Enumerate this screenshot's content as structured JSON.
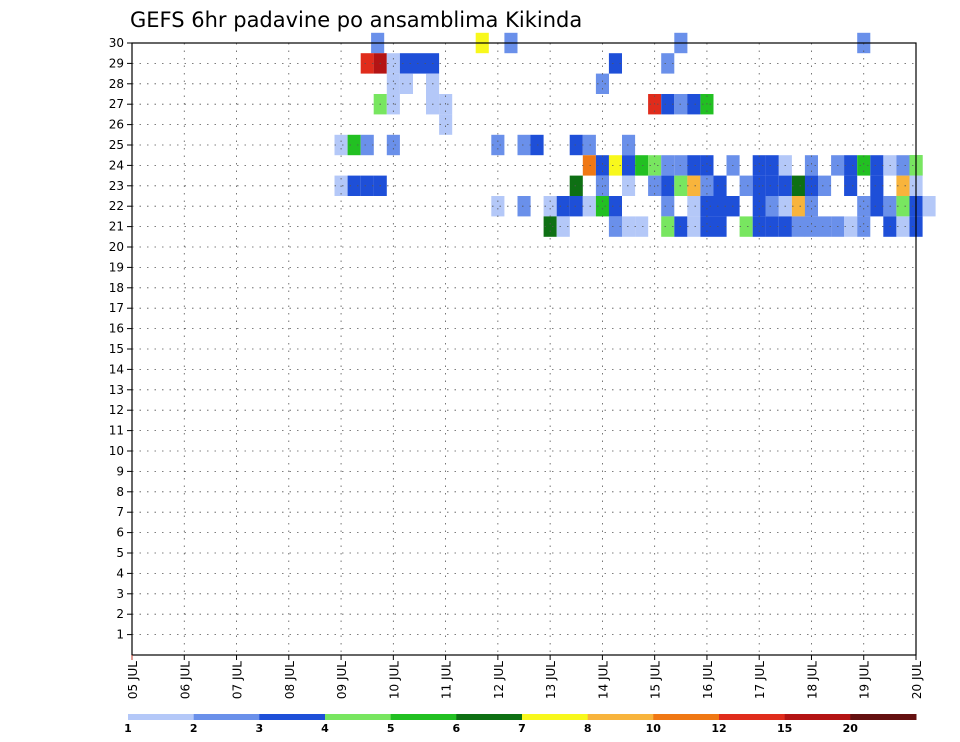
{
  "chart_data": {
    "type": "heatmap",
    "title": "GEFS 6hr padavine po ansamblima Kikinda",
    "x_tick_labels": [
      "05 JUL",
      "06 JUL",
      "07 JUL",
      "08 JUL",
      "09 JUL",
      "10 JUL",
      "11 JUL",
      "12 JUL",
      "13 JUL",
      "14 JUL",
      "15 JUL",
      "16 JUL",
      "17 JUL",
      "18 JUL",
      "19 JUL",
      "20 JUL"
    ],
    "x_range_days": [
      0,
      15
    ],
    "y_tick_labels": [
      "1",
      "2",
      "3",
      "4",
      "5",
      "6",
      "7",
      "8",
      "9",
      "10",
      "11",
      "12",
      "13",
      "14",
      "15",
      "16",
      "17",
      "18",
      "19",
      "20",
      "21",
      "22",
      "23",
      "24",
      "25",
      "26",
      "27",
      "28",
      "29",
      "30"
    ],
    "y_range": [
      0,
      30
    ],
    "grid": true,
    "colorbar": {
      "labels": [
        "1",
        "2",
        "3",
        "4",
        "5",
        "6",
        "7",
        "8",
        "10",
        "12",
        "15",
        "20"
      ],
      "colors": [
        "#b4c8f8",
        "#6a90ea",
        "#1e4fd8",
        "#78e660",
        "#22c022",
        "#0e7014",
        "#f8f81c",
        "#f8b43c",
        "#f07814",
        "#e02c1c",
        "#b41414",
        "#641010"
      ]
    },
    "cells": [
      [
        9.7,
        30,
        1
      ],
      [
        11.7,
        30,
        6
      ],
      [
        12.25,
        30,
        1
      ],
      [
        15.5,
        30,
        1
      ],
      [
        19.0,
        30,
        1
      ],
      [
        9.5,
        29,
        9
      ],
      [
        9.75,
        29,
        10
      ],
      [
        10.0,
        29,
        0
      ],
      [
        10.25,
        29,
        2
      ],
      [
        10.5,
        29,
        2
      ],
      [
        10.75,
        29,
        2
      ],
      [
        14.25,
        29,
        2
      ],
      [
        15.25,
        29,
        1
      ],
      [
        10.0,
        28,
        0
      ],
      [
        10.25,
        28,
        0
      ],
      [
        10.75,
        28,
        0
      ],
      [
        14.0,
        28,
        1
      ],
      [
        9.75,
        27,
        3
      ],
      [
        10.0,
        27,
        0
      ],
      [
        10.75,
        27,
        0
      ],
      [
        11.0,
        27,
        0
      ],
      [
        15.0,
        27,
        9
      ],
      [
        15.25,
        27,
        2
      ],
      [
        15.5,
        27,
        1
      ],
      [
        15.75,
        27,
        2
      ],
      [
        16.0,
        27,
        4
      ],
      [
        11.0,
        26,
        0
      ],
      [
        9.0,
        25,
        0
      ],
      [
        9.25,
        25,
        4
      ],
      [
        9.5,
        25,
        1
      ],
      [
        10.0,
        25,
        1
      ],
      [
        12.0,
        25,
        1
      ],
      [
        12.5,
        25,
        1
      ],
      [
        12.75,
        25,
        2
      ],
      [
        13.5,
        25,
        2
      ],
      [
        13.75,
        25,
        1
      ],
      [
        14.5,
        25,
        1
      ],
      [
        13.75,
        24,
        8
      ],
      [
        14.0,
        24,
        2
      ],
      [
        14.25,
        24,
        6
      ],
      [
        14.5,
        24,
        2
      ],
      [
        14.75,
        24,
        4
      ],
      [
        15.0,
        24,
        3
      ],
      [
        15.25,
        24,
        1
      ],
      [
        15.5,
        24,
        1
      ],
      [
        15.75,
        24,
        2
      ],
      [
        16.0,
        24,
        2
      ],
      [
        16.5,
        24,
        1
      ],
      [
        17.0,
        24,
        2
      ],
      [
        17.25,
        24,
        2
      ],
      [
        17.5,
        24,
        0
      ],
      [
        18.0,
        24,
        1
      ],
      [
        18.5,
        24,
        1
      ],
      [
        18.75,
        24,
        2
      ],
      [
        19.0,
        24,
        4
      ],
      [
        19.25,
        24,
        2
      ],
      [
        19.5,
        24,
        0
      ],
      [
        19.75,
        24,
        1
      ],
      [
        20.0,
        24,
        4
      ],
      [
        20.0,
        24,
        3
      ],
      [
        9.0,
        23,
        0
      ],
      [
        9.25,
        23,
        2
      ],
      [
        9.5,
        23,
        2
      ],
      [
        9.75,
        23,
        2
      ],
      [
        13.5,
        23,
        5
      ],
      [
        14.0,
        23,
        1
      ],
      [
        14.5,
        23,
        0
      ],
      [
        15.0,
        23,
        1
      ],
      [
        15.25,
        23,
        2
      ],
      [
        15.5,
        23,
        3
      ],
      [
        15.75,
        23,
        7
      ],
      [
        16.0,
        23,
        1
      ],
      [
        16.25,
        23,
        2
      ],
      [
        16.75,
        23,
        1
      ],
      [
        17.0,
        23,
        2
      ],
      [
        17.25,
        23,
        2
      ],
      [
        17.5,
        23,
        2
      ],
      [
        17.75,
        23,
        5
      ],
      [
        18.0,
        23,
        2
      ],
      [
        18.25,
        23,
        1
      ],
      [
        18.75,
        23,
        2
      ],
      [
        19.25,
        23,
        2
      ],
      [
        19.75,
        23,
        7
      ],
      [
        20.0,
        23,
        0
      ],
      [
        12.0,
        22,
        0
      ],
      [
        12.5,
        22,
        1
      ],
      [
        13.0,
        22,
        0
      ],
      [
        13.25,
        22,
        2
      ],
      [
        13.5,
        22,
        2
      ],
      [
        13.75,
        22,
        0
      ],
      [
        14.0,
        22,
        4
      ],
      [
        14.25,
        22,
        2
      ],
      [
        15.25,
        22,
        1
      ],
      [
        15.75,
        22,
        0
      ],
      [
        16.0,
        22,
        2
      ],
      [
        16.25,
        22,
        2
      ],
      [
        16.5,
        22,
        2
      ],
      [
        17.0,
        22,
        2
      ],
      [
        17.25,
        22,
        1
      ],
      [
        17.5,
        22,
        0
      ],
      [
        17.75,
        22,
        7
      ],
      [
        18.0,
        22,
        1
      ],
      [
        19.0,
        22,
        1
      ],
      [
        19.25,
        22,
        2
      ],
      [
        19.5,
        22,
        1
      ],
      [
        19.75,
        22,
        3
      ],
      [
        20.0,
        22,
        2
      ],
      [
        20.25,
        22,
        0
      ],
      [
        13.0,
        21,
        5
      ],
      [
        13.25,
        21,
        0
      ],
      [
        14.25,
        21,
        1
      ],
      [
        14.5,
        21,
        0
      ],
      [
        14.75,
        21,
        0
      ],
      [
        15.25,
        21,
        3
      ],
      [
        15.5,
        21,
        2
      ],
      [
        15.75,
        21,
        0
      ],
      [
        16.0,
        21,
        2
      ],
      [
        16.25,
        21,
        2
      ],
      [
        16.75,
        21,
        3
      ],
      [
        17.0,
        21,
        2
      ],
      [
        17.25,
        21,
        2
      ],
      [
        17.5,
        21,
        2
      ],
      [
        17.75,
        21,
        1
      ],
      [
        18.0,
        21,
        1
      ],
      [
        18.25,
        21,
        1
      ],
      [
        18.5,
        21,
        1
      ],
      [
        18.75,
        21,
        0
      ],
      [
        19.0,
        21,
        1
      ],
      [
        19.5,
        21,
        2
      ],
      [
        19.75,
        21,
        0
      ],
      [
        20.0,
        21,
        2
      ]
    ]
  }
}
